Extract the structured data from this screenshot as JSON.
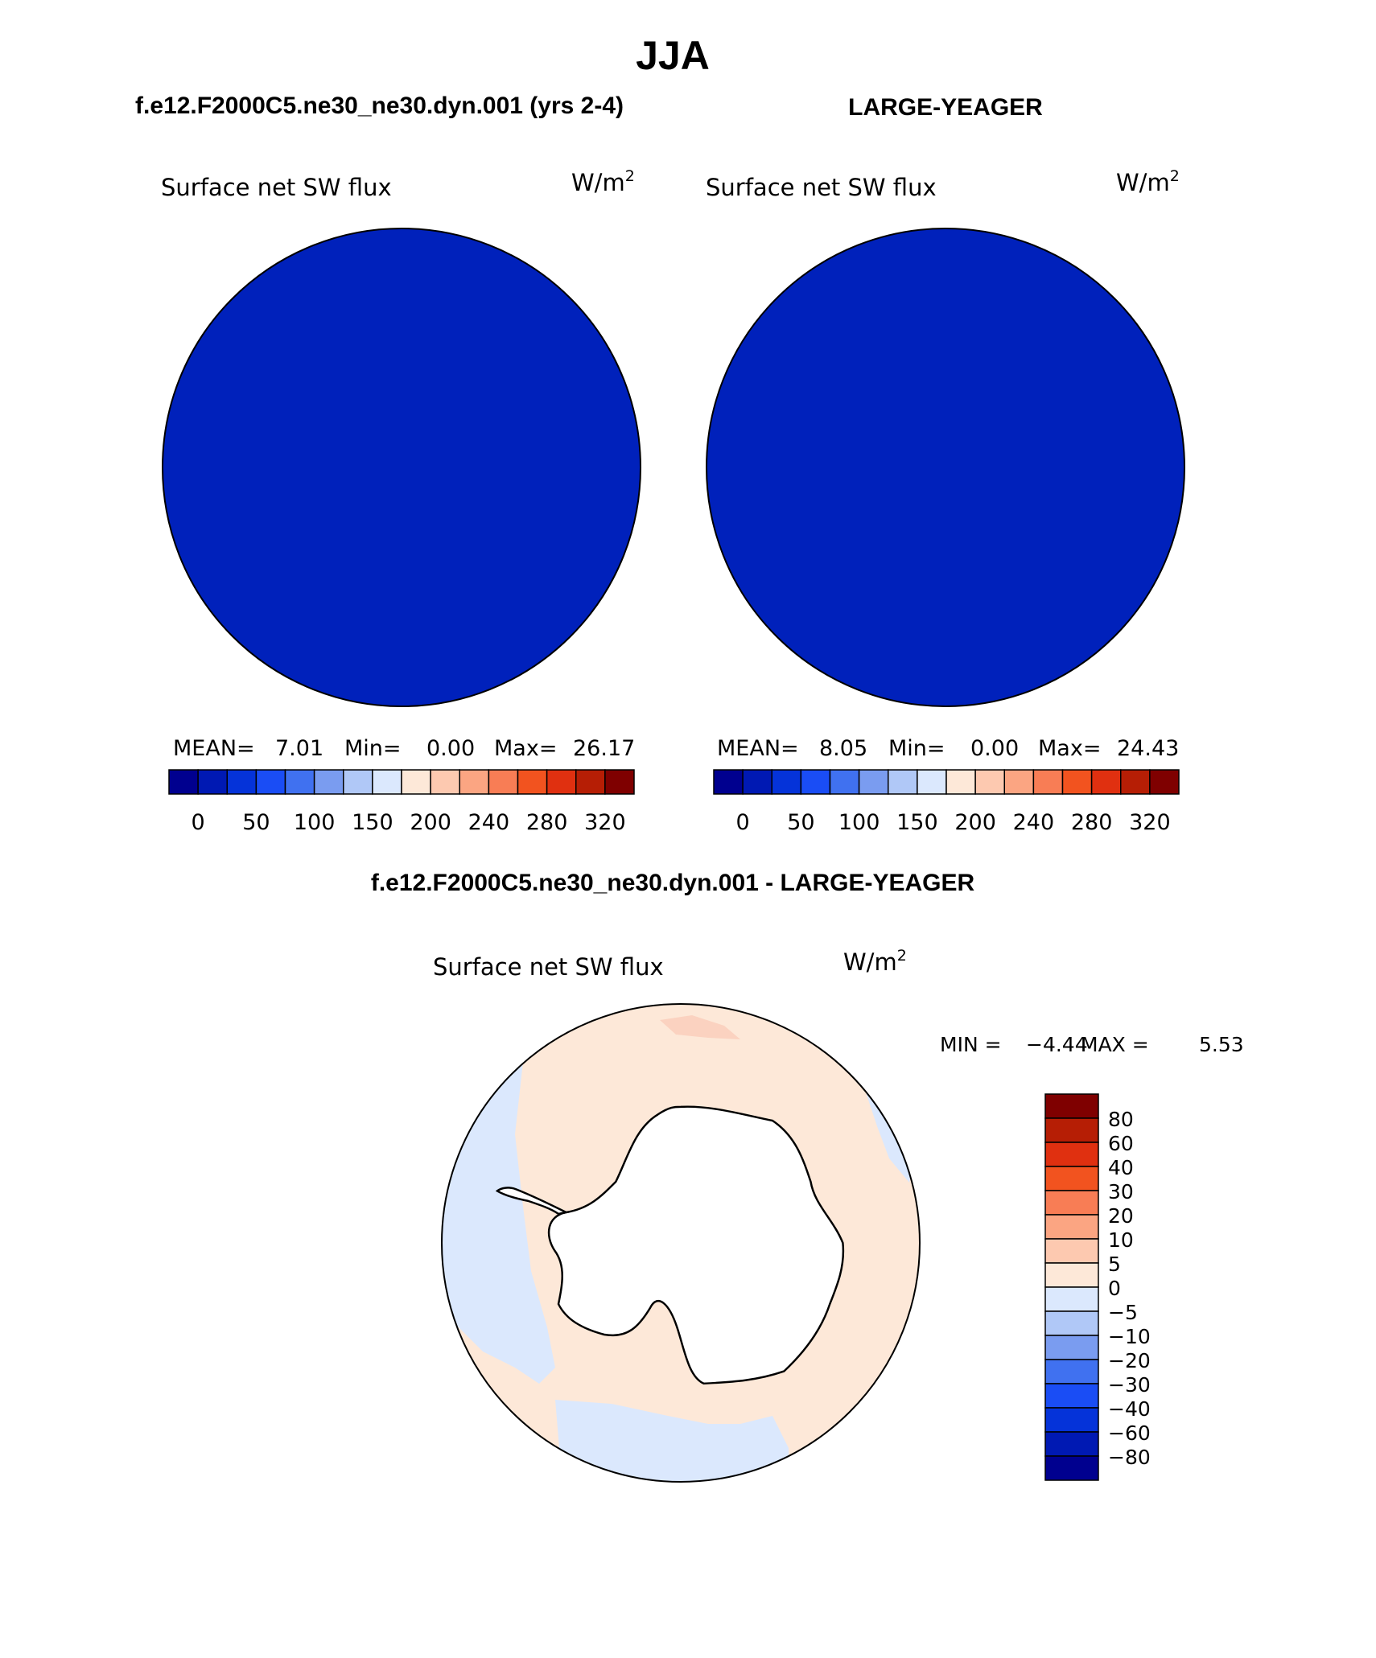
{
  "figure": {
    "title": "JJA",
    "left_case": "f.e12.F2000C5.ne30_ne30.dyn.001 (yrs 2-4)",
    "right_case": "LARGE-YEAGER",
    "diff_title": "f.e12.F2000C5.ne30_ne30.dyn.001 - LARGE-YEAGER"
  },
  "panels": {
    "left": {
      "variable": "Surface net SW flux",
      "units": "W/m",
      "units_sup": "2",
      "stats": {
        "mean_label": "MEAN=",
        "mean": "7.01",
        "min_label": "Min=",
        "min": "0.00",
        "max_label": "Max=",
        "max": "26.17"
      }
    },
    "right": {
      "variable": "Surface net SW flux",
      "units": "W/m",
      "units_sup": "2",
      "stats": {
        "mean_label": "MEAN=",
        "mean": "8.05",
        "min_label": "Min=",
        "min": "0.00",
        "max_label": "Max=",
        "max": "24.43"
      }
    },
    "diff": {
      "variable": "Surface net SW flux",
      "units": "W/m",
      "units_sup": "2",
      "stats": {
        "min_label": "MIN =",
        "min": "−4.44",
        "max_label": "MAX =",
        "max": "5.53"
      }
    }
  },
  "colorbars": {
    "abs": {
      "colors": [
        "#00008f",
        "#0019b3",
        "#0533d9",
        "#1a4df5",
        "#4071f0",
        "#7a9cf0",
        "#b0c8f7",
        "#dbe8fd",
        "#fde8d8",
        "#fdc9b0",
        "#fba582",
        "#f87d55",
        "#f2531f",
        "#e03010",
        "#b61e05",
        "#7f0000"
      ],
      "labels": [
        "0",
        "50",
        "100",
        "150",
        "200",
        "240",
        "280",
        "320"
      ]
    },
    "diff": {
      "colors": [
        "#00008f",
        "#0019b3",
        "#0533d9",
        "#1a4df5",
        "#4071f0",
        "#7a9cf0",
        "#b0c8f7",
        "#dbe8fd",
        "#fde8d8",
        "#fdc9b0",
        "#fba582",
        "#f87d55",
        "#f2531f",
        "#e03010",
        "#b61e05",
        "#7f0000"
      ],
      "labels": [
        "80",
        "60",
        "40",
        "30",
        "20",
        "10",
        "5",
        "0",
        "−5",
        "−10",
        "−20",
        "−30",
        "−40",
        "−60",
        "−80"
      ]
    }
  },
  "map_colors": {
    "ocean_abs": "#0021bb",
    "ice_white": "#ffffff",
    "diff_positive": "#fde8d8",
    "diff_negative": "#dbe8fd"
  }
}
